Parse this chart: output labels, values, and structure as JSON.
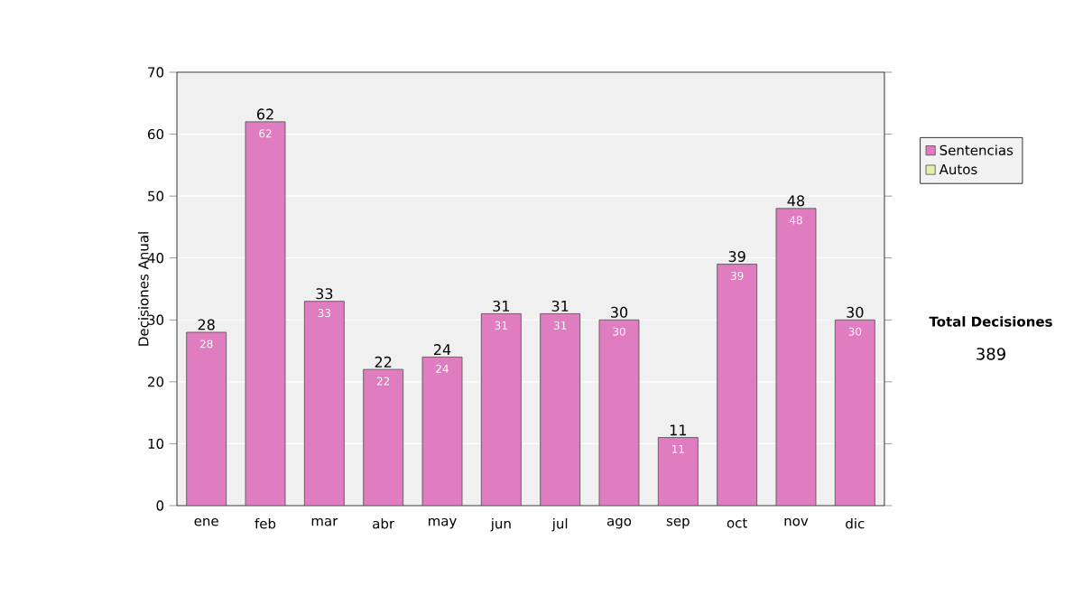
{
  "chart_data": {
    "type": "bar",
    "stacked": true,
    "ylabel": "Decisiones Anual",
    "categories": [
      "ene",
      "feb",
      "mar",
      "abr",
      "may",
      "jun",
      "jul",
      "ago",
      "sep",
      "oct",
      "nov",
      "dic"
    ],
    "series": [
      {
        "name": "Sentencias",
        "color": "#e07cc0",
        "values": [
          28,
          62,
          33,
          22,
          24,
          31,
          31,
          30,
          11,
          39,
          48,
          30
        ],
        "value_labels": [
          "28",
          "62",
          "33",
          "22",
          "24",
          "31",
          "31",
          "30",
          "11",
          "39",
          "48",
          "30"
        ]
      },
      {
        "name": "Autos",
        "color": "#e6eeaa",
        "values": [
          0,
          0,
          0,
          0,
          0,
          0,
          0,
          0,
          0,
          0,
          0,
          0
        ]
      }
    ],
    "totals": [
      "28",
      "62",
      "33",
      "22",
      "24",
      "31",
      "31",
      "30",
      "11",
      "39",
      "48",
      "30"
    ],
    "ylim": [
      0,
      70
    ],
    "yticks": [
      0,
      10,
      20,
      30,
      40,
      50,
      60,
      70
    ],
    "grid": "y",
    "legend": "right",
    "annotations": [
      "Total Decisiones",
      "389"
    ]
  }
}
